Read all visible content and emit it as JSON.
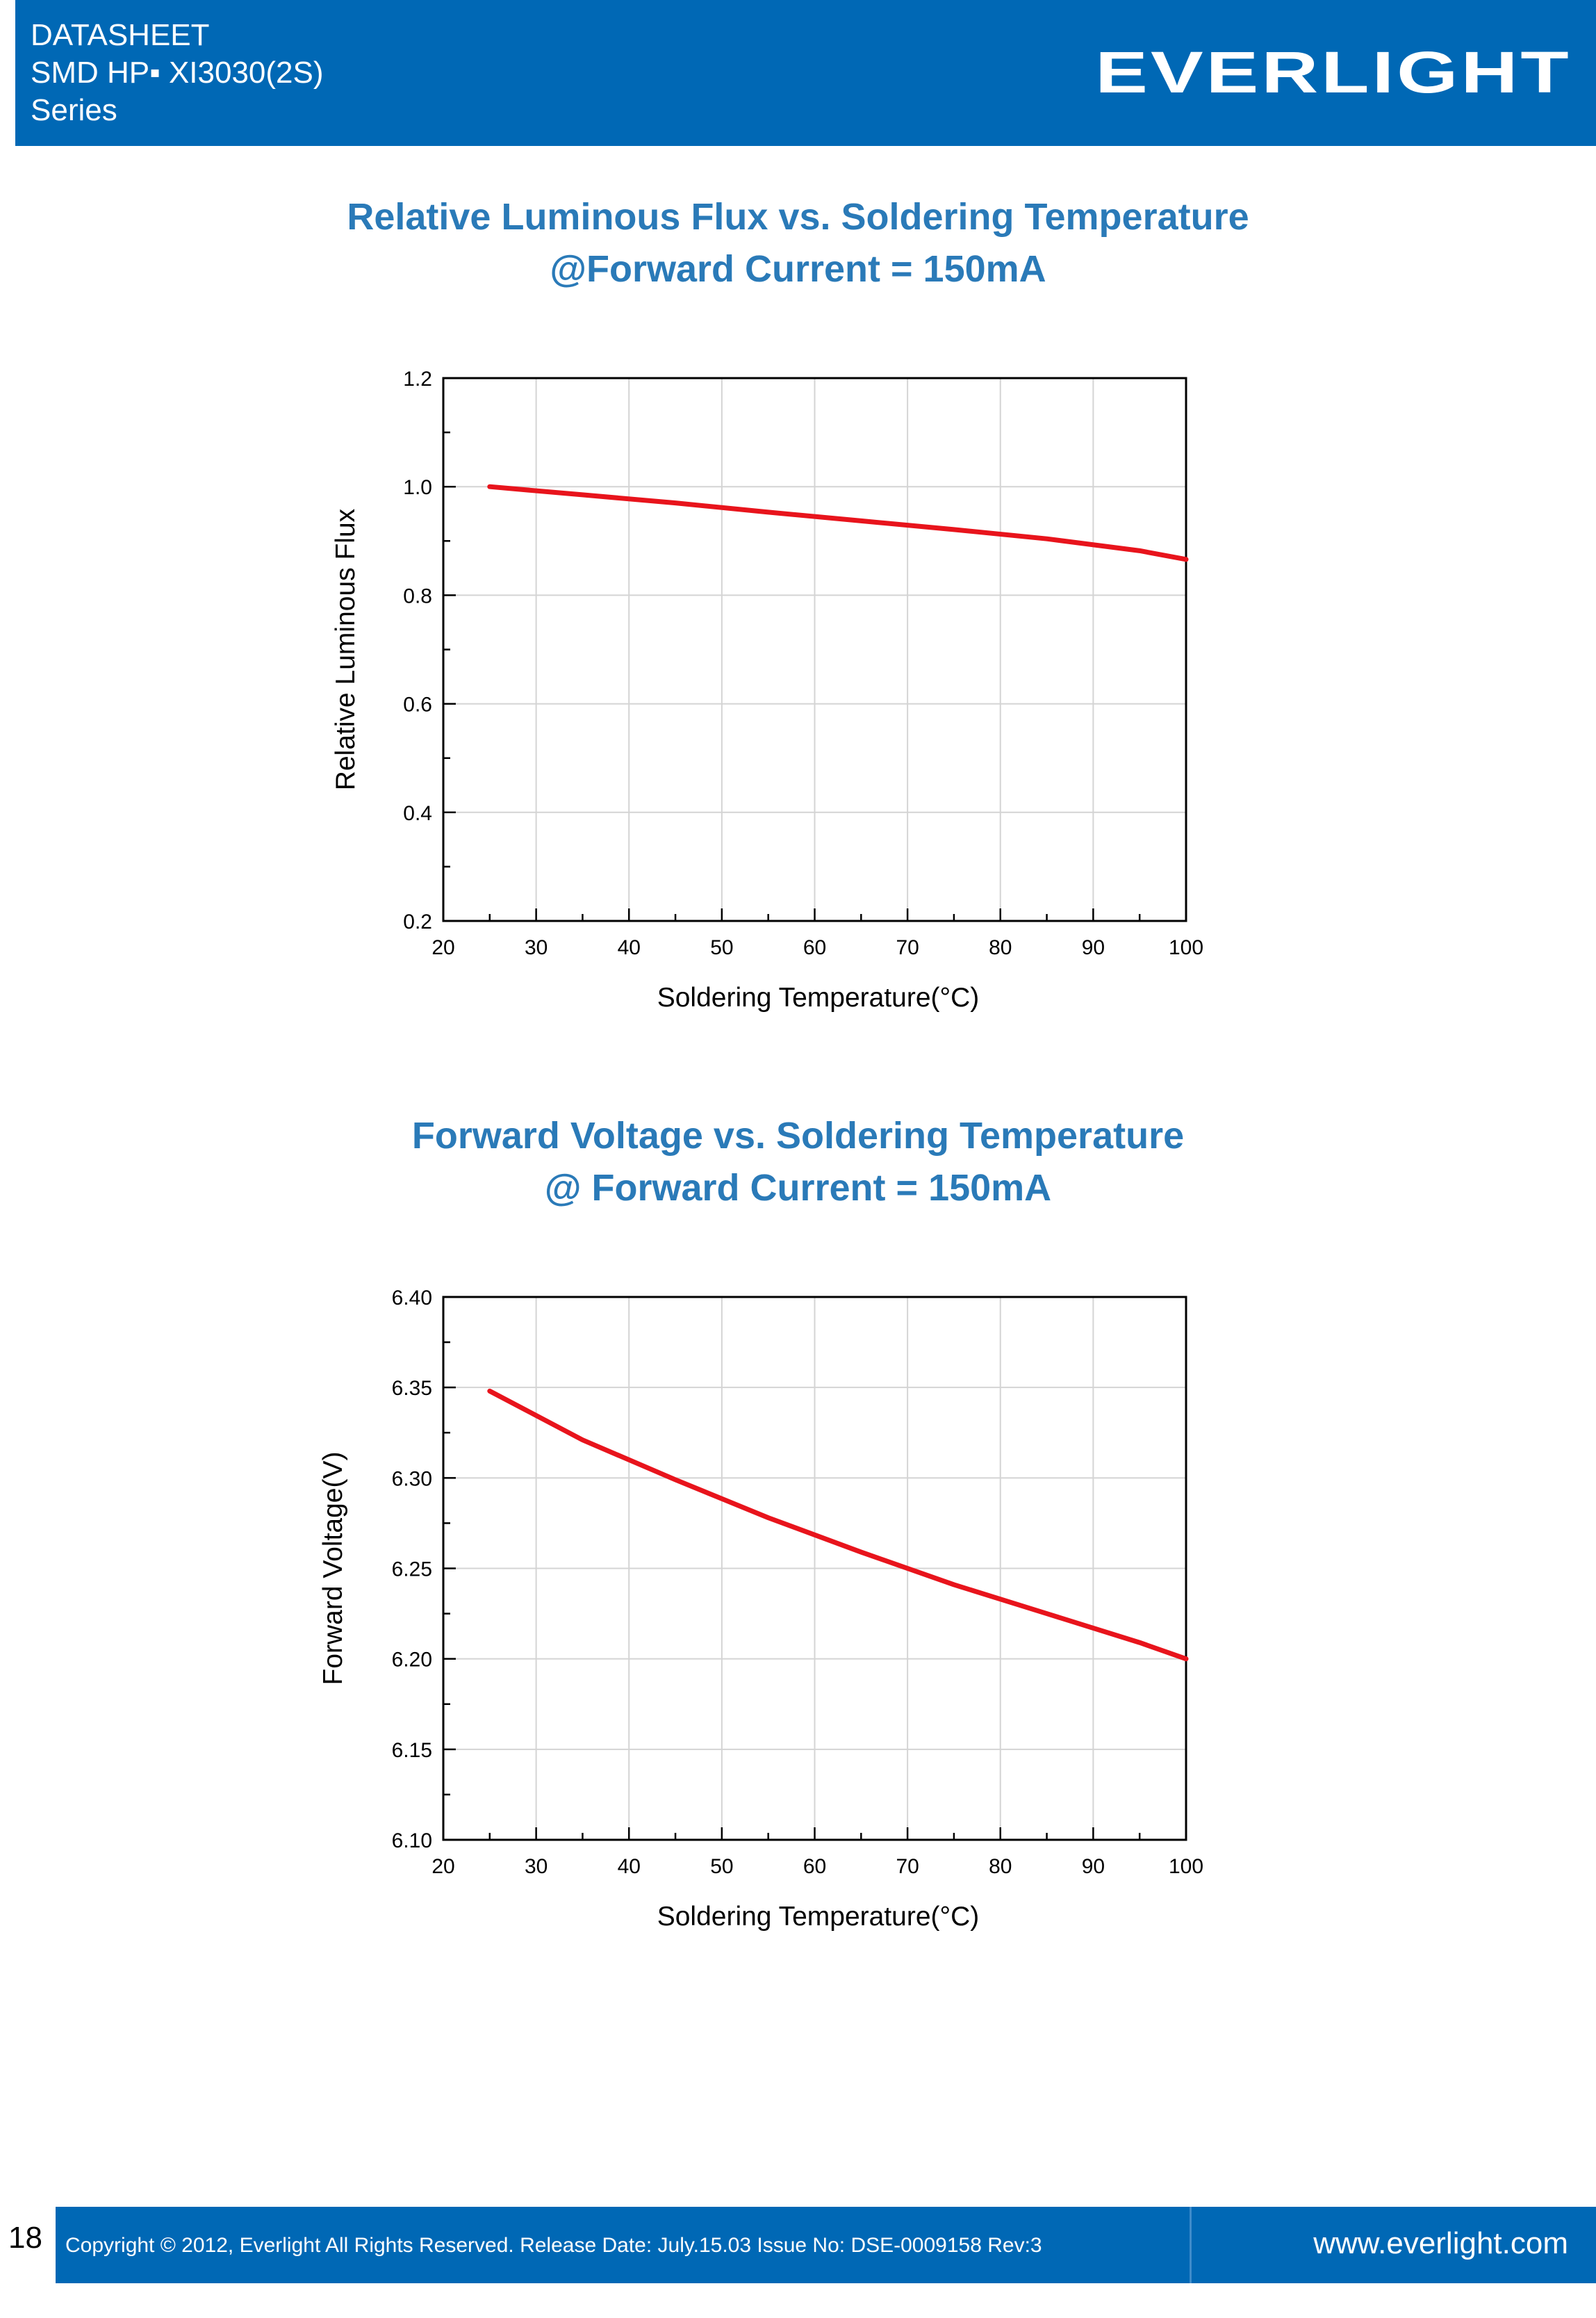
{
  "header": {
    "line1": "DATASHEET",
    "line2": "SMD HP▪ XI3030(2S)",
    "line3": "Series",
    "logo": "EVERLIGHT"
  },
  "chart1_title": {
    "line1": "Relative Luminous Flux vs. Soldering Temperature",
    "line2": "@Forward Current = 150mA"
  },
  "chart2_title": {
    "line1": "Forward Voltage vs. Soldering Temperature",
    "line2": "@ Forward Current = 150mA"
  },
  "chart_data": [
    {
      "type": "line",
      "title": "Relative Luminous Flux vs. Soldering Temperature @Forward Current = 150mA",
      "xlabel": "Soldering Temperature(°C)",
      "ylabel": "Relative Luminous Flux",
      "xlim": [
        20,
        100
      ],
      "ylim": [
        0.2,
        1.2
      ],
      "x_ticks": [
        20,
        30,
        40,
        50,
        60,
        70,
        80,
        90,
        100
      ],
      "y_ticks": [
        0.2,
        0.4,
        0.6,
        0.8,
        1.0,
        1.2
      ],
      "x_tick_labels": [
        "20",
        "30",
        "40",
        "50",
        "60",
        "70",
        "80",
        "90",
        "100"
      ],
      "y_tick_labels": [
        "0.2",
        "0.4",
        "0.6",
        "0.8",
        "1.0",
        "1.2"
      ],
      "grid": true,
      "line_color": "#e8141c",
      "series": [
        {
          "x": [
            25,
            35,
            45,
            55,
            65,
            75,
            85,
            95,
            100
          ],
          "y": [
            1.0,
            0.985,
            0.97,
            0.953,
            0.937,
            0.921,
            0.904,
            0.882,
            0.866
          ]
        }
      ]
    },
    {
      "type": "line",
      "title": "Forward Voltage vs. Soldering Temperature @ Forward Current = 150mA",
      "xlabel": "Soldering Temperature(°C)",
      "ylabel": "Forward Voltage(V)",
      "xlim": [
        20,
        100
      ],
      "ylim": [
        6.1,
        6.4
      ],
      "x_ticks": [
        20,
        30,
        40,
        50,
        60,
        70,
        80,
        90,
        100
      ],
      "y_ticks": [
        6.1,
        6.15,
        6.2,
        6.25,
        6.3,
        6.35,
        6.4
      ],
      "x_tick_labels": [
        "20",
        "30",
        "40",
        "50",
        "60",
        "70",
        "80",
        "90",
        "100"
      ],
      "y_tick_labels": [
        "6.10",
        "6.15",
        "6.20",
        "6.25",
        "6.30",
        "6.35",
        "6.40"
      ],
      "grid": true,
      "line_color": "#e8141c",
      "series": [
        {
          "x": [
            25,
            35,
            45,
            55,
            65,
            75,
            85,
            95,
            100
          ],
          "y": [
            6.348,
            6.321,
            6.299,
            6.278,
            6.259,
            6.241,
            6.225,
            6.209,
            6.2
          ]
        }
      ]
    }
  ],
  "footer": {
    "page_number": "18",
    "copyright": "Copyright © 2012, Everlight All Rights Reserved. Release Date: July.15.03 Issue No: DSE-0009158 Rev:3",
    "website": "www.everlight.com"
  }
}
